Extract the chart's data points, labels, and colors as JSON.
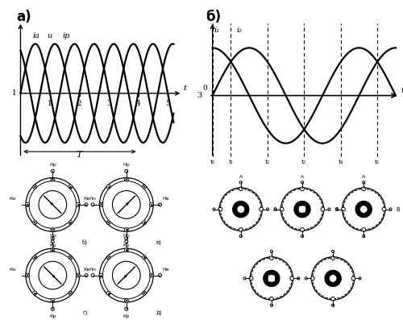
{
  "title_a": "a)",
  "title_b": "б)",
  "bg_color": "#ffffff",
  "wave_color": "#000000",
  "labels_a": [
    "iа",
    "u",
    "iр"
  ],
  "tick_labels_a": [
    "1",
    "2",
    "3",
    "4",
    "5"
  ],
  "period_label": "T",
  "panel_a_waves": {
    "period": 2.0,
    "x_end": 5.2,
    "phases": [
      0,
      -2.094,
      -4.189
    ],
    "xlim": [
      -0.15,
      5.6
    ],
    "ylim": [
      -1.35,
      1.5
    ]
  },
  "panel_b_waves": {
    "period": 4.0,
    "x_end": 5.0,
    "phases": [
      1.5708,
      0
    ],
    "dashes": [
      0.5,
      1.0,
      1.5,
      2.0,
      2.5,
      3.0,
      3.5,
      4.0
    ],
    "dash_labeled": [
      0.0,
      0.5,
      1.5,
      2.5,
      3.5,
      4.5
    ],
    "xlim": [
      -0.3,
      5.2
    ],
    "ylim": [
      -1.35,
      1.6
    ]
  }
}
